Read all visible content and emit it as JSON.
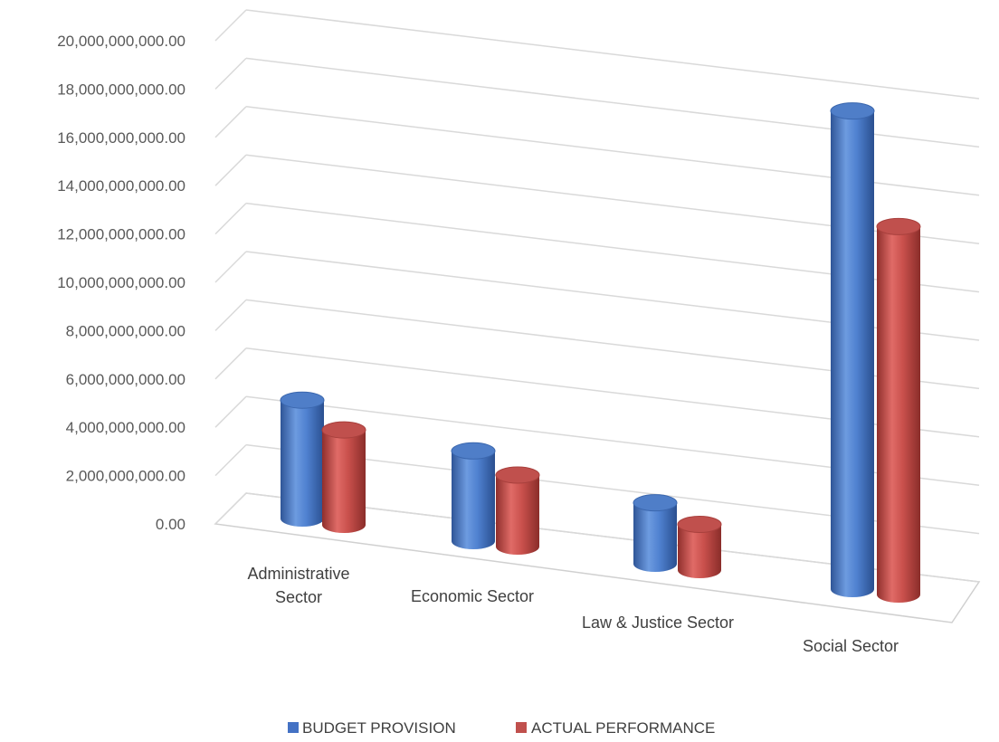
{
  "chart_data": {
    "type": "bar",
    "style": "3d-cylinder",
    "categories": [
      [
        "Administrative",
        "Sector"
      ],
      [
        "Economic Sector"
      ],
      [
        "Law & Justice Sector"
      ],
      [
        "Social Sector"
      ]
    ],
    "series": [
      {
        "name": "BUDGET PROVISION",
        "color": "#4472C4",
        "values": [
          5050000000,
          3850000000,
          2600000000,
          20400000000
        ]
      },
      {
        "name": "ACTUAL PERFORMANCE",
        "color": "#C0504D",
        "values": [
          4050000000,
          3050000000,
          1950000000,
          15700000000
        ]
      }
    ],
    "y_ticks": [
      "0.00",
      "2,000,000,000.00",
      "4,000,000,000.00",
      "6,000,000,000.00",
      "8,000,000,000.00",
      "10,000,000,000.00",
      "12,000,000,000.00",
      "14,000,000,000.00",
      "16,000,000,000.00",
      "18,000,000,000.00",
      "20,000,000,000.00"
    ],
    "ylim": [
      0,
      20000000000
    ],
    "grid": true,
    "legend_position": "bottom"
  }
}
